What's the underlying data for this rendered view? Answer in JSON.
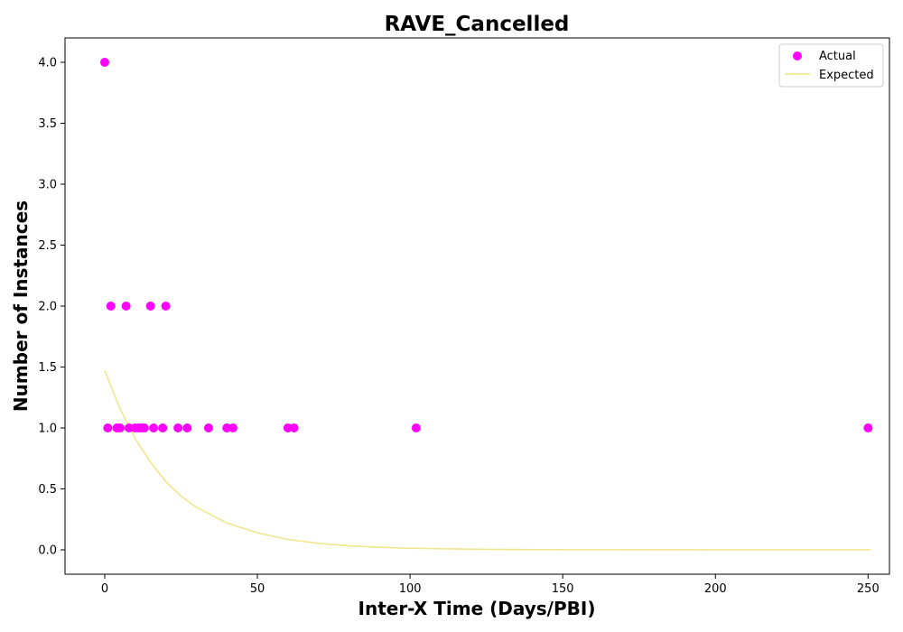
{
  "chart_data": {
    "type": "scatter",
    "title": "RAVE_Cancelled",
    "xlabel": "Inter-X Time (Days/PBI)",
    "ylabel": "Number of Instances",
    "xlim": [
      -13,
      257
    ],
    "ylim": [
      -0.2,
      4.2
    ],
    "xticks": [
      0,
      50,
      100,
      150,
      200,
      250
    ],
    "yticks": [
      0.0,
      0.5,
      1.0,
      1.5,
      2.0,
      2.5,
      3.0,
      3.5,
      4.0
    ],
    "grid": false,
    "legend_position": "top-right",
    "series": [
      {
        "name": "Actual",
        "kind": "scatter",
        "color": "#ff00ff",
        "points": [
          [
            0,
            4
          ],
          [
            1,
            1
          ],
          [
            2,
            2
          ],
          [
            4,
            1
          ],
          [
            5,
            1
          ],
          [
            7,
            2
          ],
          [
            8,
            1
          ],
          [
            10,
            1
          ],
          [
            11,
            1
          ],
          [
            12,
            1
          ],
          [
            13,
            1
          ],
          [
            15,
            2
          ],
          [
            16,
            1
          ],
          [
            19,
            1
          ],
          [
            20,
            2
          ],
          [
            24,
            1
          ],
          [
            27,
            1
          ],
          [
            34,
            1
          ],
          [
            40,
            1
          ],
          [
            42,
            1
          ],
          [
            60,
            1
          ],
          [
            62,
            1
          ],
          [
            102,
            1
          ],
          [
            250,
            1
          ]
        ]
      },
      {
        "name": "Expected",
        "kind": "line",
        "color": "#f0e68c",
        "x": [
          0,
          5,
          10,
          15,
          20,
          25,
          30,
          40,
          50,
          60,
          70,
          80,
          90,
          100,
          125,
          150,
          175,
          200,
          225,
          251
        ],
        "values": [
          1.47,
          1.16,
          0.91,
          0.72,
          0.56,
          0.44,
          0.35,
          0.22,
          0.14,
          0.085,
          0.053,
          0.033,
          0.021,
          0.013,
          0.004,
          0.001,
          0.0003,
          0.0001,
          3e-05,
          0.0
        ]
      }
    ]
  }
}
